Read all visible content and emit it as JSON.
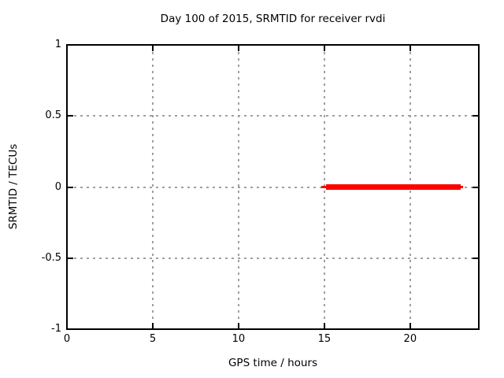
{
  "chart_data": {
    "type": "line",
    "title": "Day 100 of 2015, SRMTID for receiver rvdi",
    "xlabel": "GPS time / hours",
    "ylabel": "SRMTID / TECUs",
    "xlim": [
      0,
      24
    ],
    "ylim": [
      -1,
      1
    ],
    "xticks": [
      0,
      5,
      10,
      15,
      20
    ],
    "xtick_labels": [
      "0",
      "5",
      "10",
      "15",
      "20"
    ],
    "yticks": [
      -1,
      -0.5,
      0,
      0.5,
      1
    ],
    "ytick_labels": [
      "-1",
      "-0.5",
      "0",
      "0.5",
      "1"
    ],
    "grid": true,
    "legend": "none",
    "colors": {
      "background": "#ffffff",
      "border": "#000000",
      "grid": "#a0a0a0",
      "text": "#000000",
      "series": "#ff0000"
    },
    "series": [
      {
        "name": "SRMTID",
        "color": "#ff0000",
        "style": "thick horizontal line",
        "y": 0.0,
        "x_range": [
          14.8,
          23.1
        ],
        "x_range_thick": [
          15.1,
          22.95
        ],
        "points": [
          [
            14.8,
            0.0
          ],
          [
            23.1,
            0.0
          ]
        ]
      }
    ]
  }
}
